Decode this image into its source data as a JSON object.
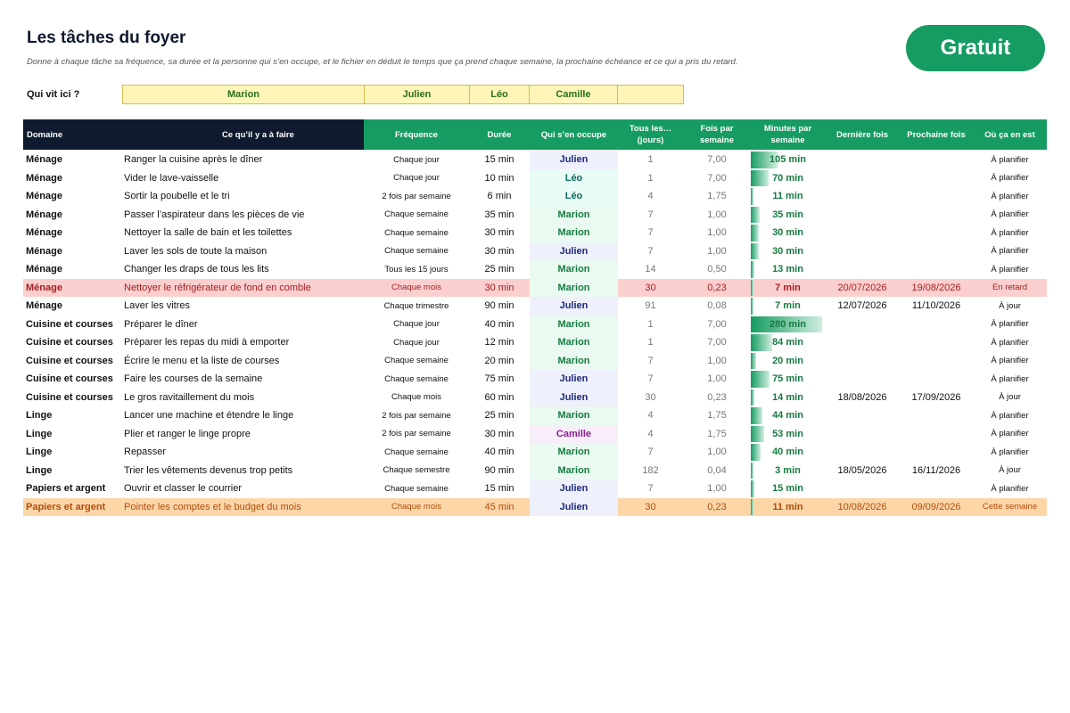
{
  "header": {
    "title": "Les tâches du foyer",
    "subtitle": "Donne à chaque tâche sa fréquence, sa durée et la personne qui s’en occupe, et le fichier en déduit le temps que ça prend chaque semaine, la prochaine échéance et ce qui a pris du retard.",
    "badge": "Gratuit"
  },
  "household": {
    "label": "Qui vit ici ?",
    "members": [
      "Marion",
      "Julien",
      "Léo",
      "Camille",
      ""
    ]
  },
  "colors": {
    "accent": "#169c62",
    "header_dark": "#0f1a2e",
    "late_row": "#fccfcf",
    "soon_row": "#fdd6a8",
    "member_box": "#fff5b8"
  },
  "columns": [
    "Domaine",
    "Ce qu’il y a à faire",
    "Fréquence",
    "Durée",
    "Qui s’en occupe",
    "Tous les… (jours)",
    "Fois par semaine",
    "Minutes par semaine",
    "Dernière fois",
    "Prochaine fois",
    "Où ça en est"
  ],
  "tasks": [
    {
      "domain": "Ménage",
      "task": "Ranger la cuisine après le dîner",
      "freq": "Chaque jour",
      "dur": "15 min",
      "who": "Julien",
      "every": "1",
      "times": "7,00",
      "minutes": "105 min",
      "minutes_value": 105,
      "last": "",
      "next": "",
      "status": "À planifier",
      "state": ""
    },
    {
      "domain": "Ménage",
      "task": "Vider le lave-vaisselle",
      "freq": "Chaque jour",
      "dur": "10 min",
      "who": "Léo",
      "every": "1",
      "times": "7,00",
      "minutes": "70 min",
      "minutes_value": 70,
      "last": "",
      "next": "",
      "status": "À planifier",
      "state": ""
    },
    {
      "domain": "Ménage",
      "task": "Sortir la poubelle et le tri",
      "freq": "2 fois par semaine",
      "dur": "6 min",
      "who": "Léo",
      "every": "4",
      "times": "1,75",
      "minutes": "11 min",
      "minutes_value": 11,
      "last": "",
      "next": "",
      "status": "À planifier",
      "state": ""
    },
    {
      "domain": "Ménage",
      "task": "Passer l’aspirateur dans les pièces de vie",
      "freq": "Chaque semaine",
      "dur": "35 min",
      "who": "Marion",
      "every": "7",
      "times": "1,00",
      "minutes": "35 min",
      "minutes_value": 35,
      "last": "",
      "next": "",
      "status": "À planifier",
      "state": ""
    },
    {
      "domain": "Ménage",
      "task": "Nettoyer la salle de bain et les toilettes",
      "freq": "Chaque semaine",
      "dur": "30 min",
      "who": "Marion",
      "every": "7",
      "times": "1,00",
      "minutes": "30 min",
      "minutes_value": 30,
      "last": "",
      "next": "",
      "status": "À planifier",
      "state": ""
    },
    {
      "domain": "Ménage",
      "task": "Laver les sols de toute la maison",
      "freq": "Chaque semaine",
      "dur": "30 min",
      "who": "Julien",
      "every": "7",
      "times": "1,00",
      "minutes": "30 min",
      "minutes_value": 30,
      "last": "",
      "next": "",
      "status": "À planifier",
      "state": ""
    },
    {
      "domain": "Ménage",
      "task": "Changer les draps de tous les lits",
      "freq": "Tous les 15 jours",
      "dur": "25 min",
      "who": "Marion",
      "every": "14",
      "times": "0,50",
      "minutes": "13 min",
      "minutes_value": 13,
      "last": "",
      "next": "",
      "status": "À planifier",
      "state": ""
    },
    {
      "domain": "Ménage",
      "task": "Nettoyer le réfrigérateur de fond en comble",
      "freq": "Chaque mois",
      "dur": "30 min",
      "who": "Marion",
      "every": "30",
      "times": "0,23",
      "minutes": "7 min",
      "minutes_value": 7,
      "last": "20/07/2026",
      "next": "19/08/2026",
      "status": "En retard",
      "state": "late"
    },
    {
      "domain": "Ménage",
      "task": "Laver les vitres",
      "freq": "Chaque trimestre",
      "dur": "90 min",
      "who": "Julien",
      "every": "91",
      "times": "0,08",
      "minutes": "7 min",
      "minutes_value": 7,
      "last": "12/07/2026",
      "next": "11/10/2026",
      "status": "À jour",
      "state": ""
    },
    {
      "domain": "Cuisine et courses",
      "task": "Préparer le dîner",
      "freq": "Chaque jour",
      "dur": "40 min",
      "who": "Marion",
      "every": "1",
      "times": "7,00",
      "minutes": "280 min",
      "minutes_value": 280,
      "last": "",
      "next": "",
      "status": "À planifier",
      "state": ""
    },
    {
      "domain": "Cuisine et courses",
      "task": "Préparer les repas du midi à emporter",
      "freq": "Chaque jour",
      "dur": "12 min",
      "who": "Marion",
      "every": "1",
      "times": "7,00",
      "minutes": "84 min",
      "minutes_value": 84,
      "last": "",
      "next": "",
      "status": "À planifier",
      "state": ""
    },
    {
      "domain": "Cuisine et courses",
      "task": "Écrire le menu et la liste de courses",
      "freq": "Chaque semaine",
      "dur": "20 min",
      "who": "Marion",
      "every": "7",
      "times": "1,00",
      "minutes": "20 min",
      "minutes_value": 20,
      "last": "",
      "next": "",
      "status": "À planifier",
      "state": ""
    },
    {
      "domain": "Cuisine et courses",
      "task": "Faire les courses de la semaine",
      "freq": "Chaque semaine",
      "dur": "75 min",
      "who": "Julien",
      "every": "7",
      "times": "1,00",
      "minutes": "75 min",
      "minutes_value": 75,
      "last": "",
      "next": "",
      "status": "À planifier",
      "state": ""
    },
    {
      "domain": "Cuisine et courses",
      "task": "Le gros ravitaillement du mois",
      "freq": "Chaque mois",
      "dur": "60 min",
      "who": "Julien",
      "every": "30",
      "times": "0,23",
      "minutes": "14 min",
      "minutes_value": 14,
      "last": "18/08/2026",
      "next": "17/09/2026",
      "status": "À jour",
      "state": ""
    },
    {
      "domain": "Linge",
      "task": "Lancer une machine et étendre le linge",
      "freq": "2 fois par semaine",
      "dur": "25 min",
      "who": "Marion",
      "every": "4",
      "times": "1,75",
      "minutes": "44 min",
      "minutes_value": 44,
      "last": "",
      "next": "",
      "status": "À planifier",
      "state": ""
    },
    {
      "domain": "Linge",
      "task": "Plier et ranger le linge propre",
      "freq": "2 fois par semaine",
      "dur": "30 min",
      "who": "Camille",
      "every": "4",
      "times": "1,75",
      "minutes": "53 min",
      "minutes_value": 53,
      "last": "",
      "next": "",
      "status": "À planifier",
      "state": ""
    },
    {
      "domain": "Linge",
      "task": "Repasser",
      "freq": "Chaque semaine",
      "dur": "40 min",
      "who": "Marion",
      "every": "7",
      "times": "1,00",
      "minutes": "40 min",
      "minutes_value": 40,
      "last": "",
      "next": "",
      "status": "À planifier",
      "state": ""
    },
    {
      "domain": "Linge",
      "task": "Trier les vêtements devenus trop petits",
      "freq": "Chaque semestre",
      "dur": "90 min",
      "who": "Marion",
      "every": "182",
      "times": "0,04",
      "minutes": "3 min",
      "minutes_value": 3,
      "last": "18/05/2026",
      "next": "16/11/2026",
      "status": "À jour",
      "state": ""
    },
    {
      "domain": "Papiers et argent",
      "task": "Ouvrir et classer le courrier",
      "freq": "Chaque semaine",
      "dur": "15 min",
      "who": "Julien",
      "every": "7",
      "times": "1,00",
      "minutes": "15 min",
      "minutes_value": 15,
      "last": "",
      "next": "",
      "status": "À planifier",
      "state": ""
    },
    {
      "domain": "Papiers et argent",
      "task": "Pointer les comptes et le budget du mois",
      "freq": "Chaque mois",
      "dur": "45 min",
      "who": "Julien",
      "every": "30",
      "times": "0,23",
      "minutes": "11 min",
      "minutes_value": 11,
      "last": "10/08/2026",
      "next": "09/09/2026",
      "status": "Cette semaine",
      "state": "soon"
    }
  ]
}
